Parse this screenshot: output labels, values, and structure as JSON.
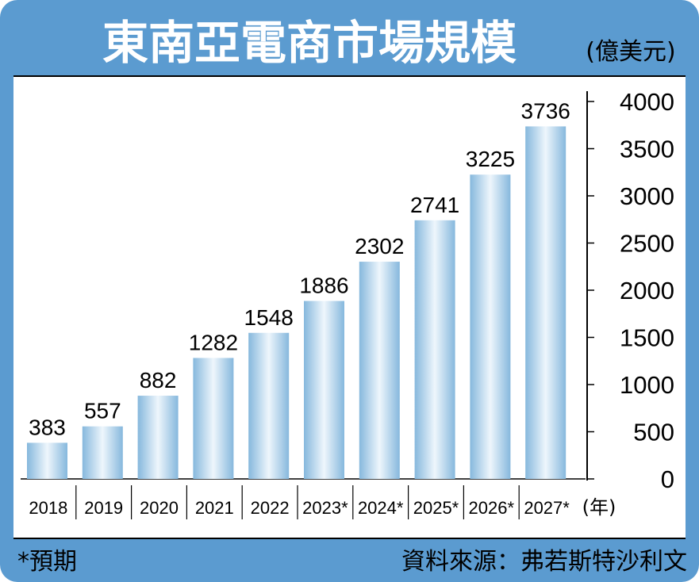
{
  "title": "東南亞電商市場規模",
  "unit_label": "(億美元)",
  "footnote": "*預期",
  "source": "資料來源：弗若斯特沙利文",
  "colors": {
    "frame": "#5b9bd0",
    "title_text": "#ffffff",
    "bar_light": "#eef6fc",
    "bar_dark": "#86b8dd",
    "text": "#000000"
  },
  "chart_data": {
    "type": "bar",
    "categories": [
      "2018",
      "2019",
      "2020",
      "2021",
      "2022",
      "2023*",
      "2024*",
      "2025*",
      "2026*",
      "2027*"
    ],
    "values": [
      383,
      557,
      882,
      1282,
      1548,
      1886,
      2302,
      2741,
      3225,
      3736
    ],
    "x_unit_label": "(年)",
    "yticks": [
      0,
      500,
      1000,
      1500,
      2000,
      2500,
      3000,
      3500,
      4000
    ],
    "ylim": [
      0,
      4000
    ],
    "y_axis_position": "right",
    "grid": false,
    "legend": "none"
  }
}
